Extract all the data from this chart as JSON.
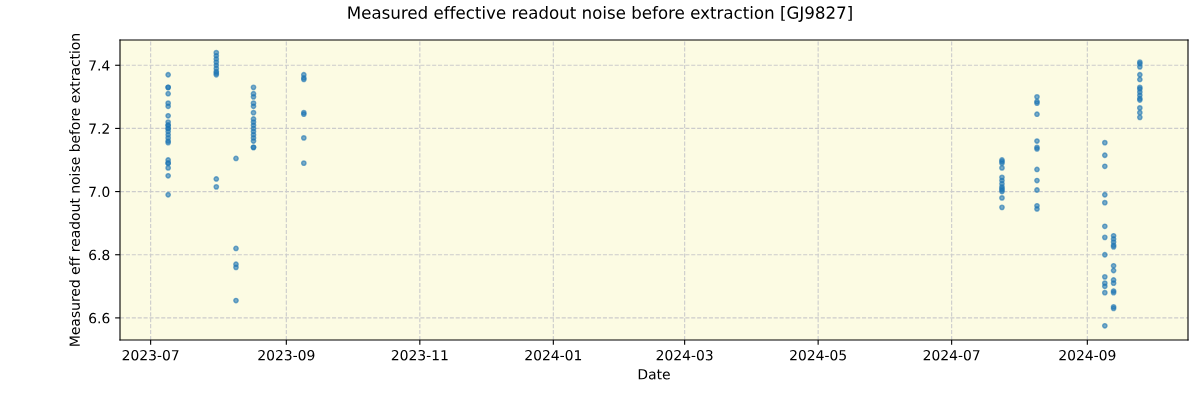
{
  "chart_data": {
    "type": "scatter",
    "title": "Measured effective readout noise before extraction [GJ9827]",
    "xlabel": "Date",
    "ylabel": "Measured eff readout noise before extraction",
    "series": [
      {
        "color": "#1f77b4",
        "x": [
          "2023-07-09",
          "2023-07-09",
          "2023-07-09",
          "2023-07-09",
          "2023-07-09",
          "2023-07-09",
          "2023-07-09",
          "2023-07-09",
          "2023-07-09",
          "2023-07-09",
          "2023-07-09",
          "2023-07-09",
          "2023-07-09",
          "2023-07-09",
          "2023-07-09",
          "2023-07-09",
          "2023-07-09",
          "2023-07-09",
          "2023-07-09",
          "2023-07-09",
          "2023-07-09",
          "2023-07-09",
          "2023-07-09",
          "2023-07-31",
          "2023-07-31",
          "2023-07-31",
          "2023-07-31",
          "2023-07-31",
          "2023-07-31",
          "2023-07-31",
          "2023-07-31",
          "2023-07-31",
          "2023-07-31",
          "2023-07-31",
          "2023-08-09",
          "2023-08-09",
          "2023-08-09",
          "2023-08-09",
          "2023-08-09",
          "2023-08-17",
          "2023-08-17",
          "2023-08-17",
          "2023-08-17",
          "2023-08-17",
          "2023-08-17",
          "2023-08-17",
          "2023-08-17",
          "2023-08-17",
          "2023-08-17",
          "2023-08-17",
          "2023-08-17",
          "2023-08-17",
          "2023-08-17",
          "2023-08-17",
          "2023-08-17",
          "2023-09-09",
          "2023-09-09",
          "2023-09-09",
          "2023-09-09",
          "2023-09-09",
          "2023-09-09",
          "2023-09-09",
          "2024-07-24",
          "2024-07-24",
          "2024-07-24",
          "2024-07-24",
          "2024-07-24",
          "2024-07-24",
          "2024-07-24",
          "2024-07-24",
          "2024-07-24",
          "2024-07-24",
          "2024-07-24",
          "2024-07-24",
          "2024-07-24",
          "2024-08-09",
          "2024-08-09",
          "2024-08-09",
          "2024-08-09",
          "2024-08-09",
          "2024-08-09",
          "2024-08-09",
          "2024-08-09",
          "2024-08-09",
          "2024-08-09",
          "2024-08-09",
          "2024-08-09",
          "2024-09-09",
          "2024-09-09",
          "2024-09-09",
          "2024-09-09",
          "2024-09-09",
          "2024-09-09",
          "2024-09-09",
          "2024-09-09",
          "2024-09-09",
          "2024-09-09",
          "2024-09-09",
          "2024-09-09",
          "2024-09-09",
          "2024-09-13",
          "2024-09-13",
          "2024-09-13",
          "2024-09-13",
          "2024-09-13",
          "2024-09-13",
          "2024-09-13",
          "2024-09-13",
          "2024-09-13",
          "2024-09-13",
          "2024-09-13",
          "2024-09-13",
          "2024-09-13",
          "2024-09-25",
          "2024-09-25",
          "2024-09-25",
          "2024-09-25",
          "2024-09-25",
          "2024-09-25",
          "2024-09-25",
          "2024-09-25",
          "2024-09-25",
          "2024-09-25",
          "2024-09-25",
          "2024-09-25",
          "2024-09-25",
          "2024-09-25"
        ],
        "values": [
          7.37,
          7.33,
          7.33,
          7.31,
          7.28,
          7.27,
          7.24,
          7.22,
          7.21,
          7.21,
          7.2,
          7.2,
          7.19,
          7.18,
          7.17,
          7.16,
          7.155,
          7.1,
          7.09,
          7.09,
          7.075,
          7.05,
          6.99,
          7.44,
          7.43,
          7.42,
          7.41,
          7.4,
          7.39,
          7.38,
          7.375,
          7.37,
          7.04,
          7.015,
          7.105,
          6.82,
          6.77,
          6.76,
          6.655,
          7.33,
          7.31,
          7.3,
          7.28,
          7.27,
          7.25,
          7.23,
          7.22,
          7.21,
          7.2,
          7.19,
          7.18,
          7.17,
          7.16,
          7.14,
          7.14,
          7.37,
          7.36,
          7.355,
          7.25,
          7.245,
          7.17,
          7.09,
          7.1,
          7.095,
          7.09,
          7.075,
          7.045,
          7.035,
          7.025,
          7.015,
          7.01,
          7.005,
          7.0,
          6.98,
          6.95,
          7.3,
          7.285,
          7.28,
          7.245,
          7.16,
          7.14,
          7.135,
          7.07,
          7.035,
          7.005,
          6.955,
          6.945,
          7.155,
          7.115,
          7.08,
          6.99,
          6.965,
          6.89,
          6.855,
          6.8,
          6.73,
          6.71,
          6.7,
          6.68,
          6.575,
          6.86,
          6.85,
          6.84,
          6.83,
          6.825,
          6.765,
          6.75,
          6.72,
          6.71,
          6.685,
          6.68,
          6.635,
          6.63,
          7.41,
          7.405,
          7.395,
          7.37,
          7.355,
          7.33,
          7.325,
          7.315,
          7.305,
          7.295,
          7.29,
          7.265,
          7.25,
          7.235
        ]
      }
    ],
    "xlim": [
      "2023-06-17",
      "2024-10-17"
    ],
    "xticks": [
      {
        "value": "2023-07-01",
        "label": "2023-07"
      },
      {
        "value": "2023-09-01",
        "label": "2023-09"
      },
      {
        "value": "2023-11-01",
        "label": "2023-11"
      },
      {
        "value": "2024-01-01",
        "label": "2024-01"
      },
      {
        "value": "2024-03-01",
        "label": "2024-03"
      },
      {
        "value": "2024-05-01",
        "label": "2024-05"
      },
      {
        "value": "2024-07-01",
        "label": "2024-07"
      },
      {
        "value": "2024-09-01",
        "label": "2024-09"
      }
    ],
    "ylim": [
      6.53,
      7.48
    ],
    "yticks": [
      6.6,
      6.8,
      {
        "value": 7,
        "label": "7.0"
      },
      7.2,
      7.4
    ],
    "grid": true,
    "marker": "circle"
  }
}
